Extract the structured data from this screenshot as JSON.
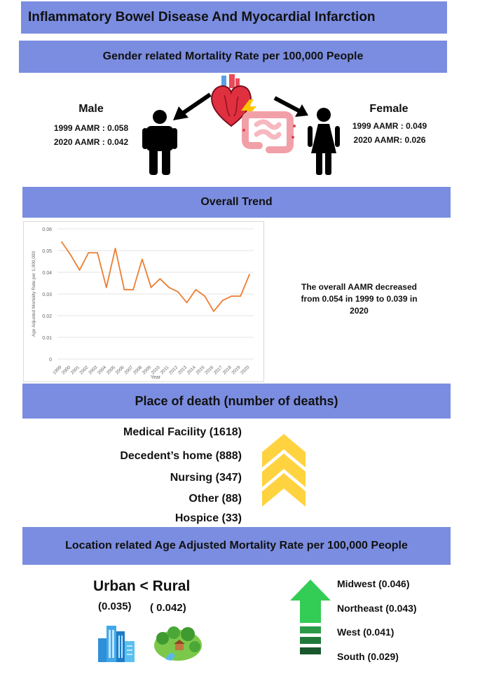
{
  "title": "Inflammatory Bowel Disease And Myocardial Infarction",
  "gender": {
    "header": "Gender related Mortality Rate per 100,000 People",
    "male": {
      "label": "Male",
      "line1": "1999 AAMR : 0.058",
      "line2": "2020 AAMR : 0.042"
    },
    "female": {
      "label": "Female",
      "line1": "1999 AAMR : 0.049",
      "line2": "2020 AAMR: 0.026"
    }
  },
  "trend": {
    "header": "Overall Trend",
    "summary": "The overall AAMR decreased from 0.054 in 1999 to 0.039 in 2020"
  },
  "place": {
    "header": "Place of death (number of deaths)",
    "items": [
      "Medical Facility (1618)",
      "Decedent’s home (888)",
      "Nursing (347)",
      "Other (88)",
      "Hospice (33)"
    ]
  },
  "location": {
    "header": "Location related Age Adjusted Mortality Rate per 100,000 People",
    "urban_rural": "Urban < Rural",
    "urban_value": "(0.035)",
    "rural_value": "( 0.042)",
    "regions": [
      "Midwest (0.046)",
      "Northeast (0.043)",
      "West (0.041)",
      "South (0.029)"
    ]
  },
  "colors": {
    "banner": "#7b8de0",
    "line": "#ed7d31",
    "chevron": "#ffd23f",
    "arrow_green": "#33cc55"
  },
  "chart_data": {
    "type": "line",
    "xlabel": "Year",
    "ylabel": "Age Adjusted Mortality Rate per 1,000,000",
    "ylim": [
      0,
      0.06
    ],
    "yticks": [
      "0",
      "0.01",
      "0.02",
      "0.03",
      "0.04",
      "0.05",
      "0.06"
    ],
    "grid": true,
    "categories": [
      "1999",
      "2000",
      "2001",
      "2002",
      "2003",
      "2004",
      "2005",
      "2006",
      "2007",
      "2008",
      "2009",
      "2010",
      "2011",
      "2012",
      "2013",
      "2014",
      "2015",
      "2016",
      "2017",
      "2018",
      "2019",
      "2020"
    ],
    "values": [
      0.054,
      0.048,
      0.041,
      0.049,
      0.049,
      0.033,
      0.051,
      0.032,
      0.032,
      0.046,
      0.033,
      0.037,
      0.033,
      0.031,
      0.026,
      0.032,
      0.029,
      0.022,
      0.027,
      0.029,
      0.029,
      0.039
    ]
  }
}
